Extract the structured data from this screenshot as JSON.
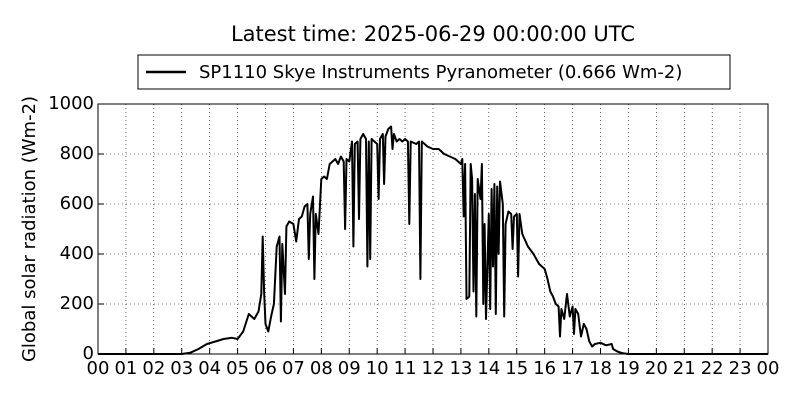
{
  "chart_data": {
    "type": "line",
    "title": "Latest time: 2025-06-29 00:00:00 UTC",
    "y_label": "Global solar radiation (Wm-2)",
    "grid": true,
    "legend": "upper center",
    "xlim": [
      0,
      24
    ],
    "ylim": [
      0,
      1000
    ],
    "yticks": [
      0,
      200,
      400,
      600,
      800,
      1000
    ],
    "xticks": [
      {
        "value": 0,
        "label": "00"
      },
      {
        "value": 1,
        "label": "01"
      },
      {
        "value": 2,
        "label": "02"
      },
      {
        "value": 3,
        "label": "03"
      },
      {
        "value": 4,
        "label": "04"
      },
      {
        "value": 5,
        "label": "05"
      },
      {
        "value": 6,
        "label": "06"
      },
      {
        "value": 7,
        "label": "07"
      },
      {
        "value": 8,
        "label": "08"
      },
      {
        "value": 9,
        "label": "09"
      },
      {
        "value": 10,
        "label": "10"
      },
      {
        "value": 11,
        "label": "11"
      },
      {
        "value": 12,
        "label": "12"
      },
      {
        "value": 13,
        "label": "13"
      },
      {
        "value": 14,
        "label": "14"
      },
      {
        "value": 15,
        "label": "15"
      },
      {
        "value": 16,
        "label": "16"
      },
      {
        "value": 17,
        "label": "17"
      },
      {
        "value": 18,
        "label": "18"
      },
      {
        "value": 19,
        "label": "19"
      },
      {
        "value": 20,
        "label": "20"
      },
      {
        "value": 21,
        "label": "21"
      },
      {
        "value": 22,
        "label": "22"
      },
      {
        "value": 23,
        "label": "23"
      },
      {
        "value": 24,
        "label": "00"
      }
    ],
    "x": [
      0,
      3,
      3.3,
      3.6,
      3.9,
      4.2,
      4.5,
      4.8,
      5.0,
      5.2,
      5.4,
      5.6,
      5.75,
      5.85,
      5.9,
      5.95,
      6.0,
      6.1,
      6.2,
      6.3,
      6.4,
      6.5,
      6.55,
      6.6,
      6.7,
      6.75,
      6.85,
      7.0,
      7.1,
      7.2,
      7.3,
      7.4,
      7.5,
      7.55,
      7.6,
      7.7,
      7.75,
      7.8,
      7.9,
      8.0,
      8.1,
      8.2,
      8.3,
      8.4,
      8.5,
      8.6,
      8.7,
      8.8,
      8.85,
      8.9,
      9.0,
      9.1,
      9.15,
      9.2,
      9.3,
      9.35,
      9.4,
      9.5,
      9.6,
      9.65,
      9.7,
      9.75,
      9.8,
      9.9,
      10.0,
      10.05,
      10.1,
      10.2,
      10.25,
      10.3,
      10.4,
      10.5,
      10.55,
      10.6,
      10.7,
      10.8,
      10.9,
      11.0,
      11.1,
      11.15,
      11.2,
      11.4,
      11.5,
      11.55,
      11.6,
      11.8,
      12.0,
      12.2,
      12.4,
      12.6,
      12.8,
      12.9,
      13.0,
      13.05,
      13.1,
      13.15,
      13.2,
      13.3,
      13.35,
      13.4,
      13.45,
      13.5,
      13.55,
      13.6,
      13.7,
      13.75,
      13.8,
      13.85,
      13.9,
      14.0,
      14.05,
      14.1,
      14.15,
      14.2,
      14.25,
      14.3,
      14.35,
      14.4,
      14.5,
      14.55,
      14.6,
      14.7,
      14.8,
      14.85,
      14.9,
      15.0,
      15.05,
      15.1,
      15.2,
      15.4,
      15.6,
      15.8,
      16.0,
      16.1,
      16.2,
      16.3,
      16.4,
      16.5,
      16.55,
      16.6,
      16.7,
      16.8,
      16.9,
      17.0,
      17.05,
      17.1,
      17.2,
      17.3,
      17.4,
      17.5,
      17.6,
      17.7,
      17.8,
      18.0,
      18.2,
      18.4,
      18.45,
      18.6,
      18.8,
      19.0,
      24
    ],
    "series": [
      {
        "name": "SP1110 Skye Instruments Pyranometer (0.666 Wm-2)",
        "color": "#000000",
        "values": [
          0,
          0,
          5,
          20,
          40,
          50,
          60,
          65,
          60,
          90,
          160,
          140,
          170,
          240,
          470,
          250,
          120,
          90,
          150,
          200,
          430,
          470,
          130,
          440,
          240,
          510,
          530,
          520,
          450,
          540,
          550,
          590,
          600,
          380,
          560,
          630,
          300,
          560,
          480,
          700,
          710,
          700,
          760,
          770,
          780,
          760,
          790,
          770,
          500,
          780,
          770,
          850,
          430,
          840,
          850,
          540,
          860,
          880,
          860,
          350,
          850,
          380,
          860,
          850,
          840,
          620,
          860,
          880,
          680,
          870,
          900,
          910,
          820,
          880,
          850,
          860,
          850,
          860,
          850,
          520,
          850,
          840,
          850,
          300,
          850,
          830,
          820,
          820,
          800,
          790,
          780,
          770,
          760,
          780,
          550,
          760,
          220,
          230,
          760,
          700,
          250,
          640,
          150,
          700,
          620,
          760,
          200,
          520,
          140,
          560,
          180,
          660,
          350,
          680,
          160,
          670,
          400,
          690,
          600,
          150,
          520,
          570,
          560,
          420,
          550,
          560,
          310,
          560,
          480,
          430,
          400,
          360,
          340,
          300,
          250,
          230,
          200,
          190,
          70,
          180,
          140,
          240,
          150,
          190,
          80,
          180,
          160,
          70,
          120,
          100,
          50,
          30,
          40,
          45,
          35,
          40,
          20,
          10,
          3,
          0,
          0
        ]
      }
    ]
  }
}
